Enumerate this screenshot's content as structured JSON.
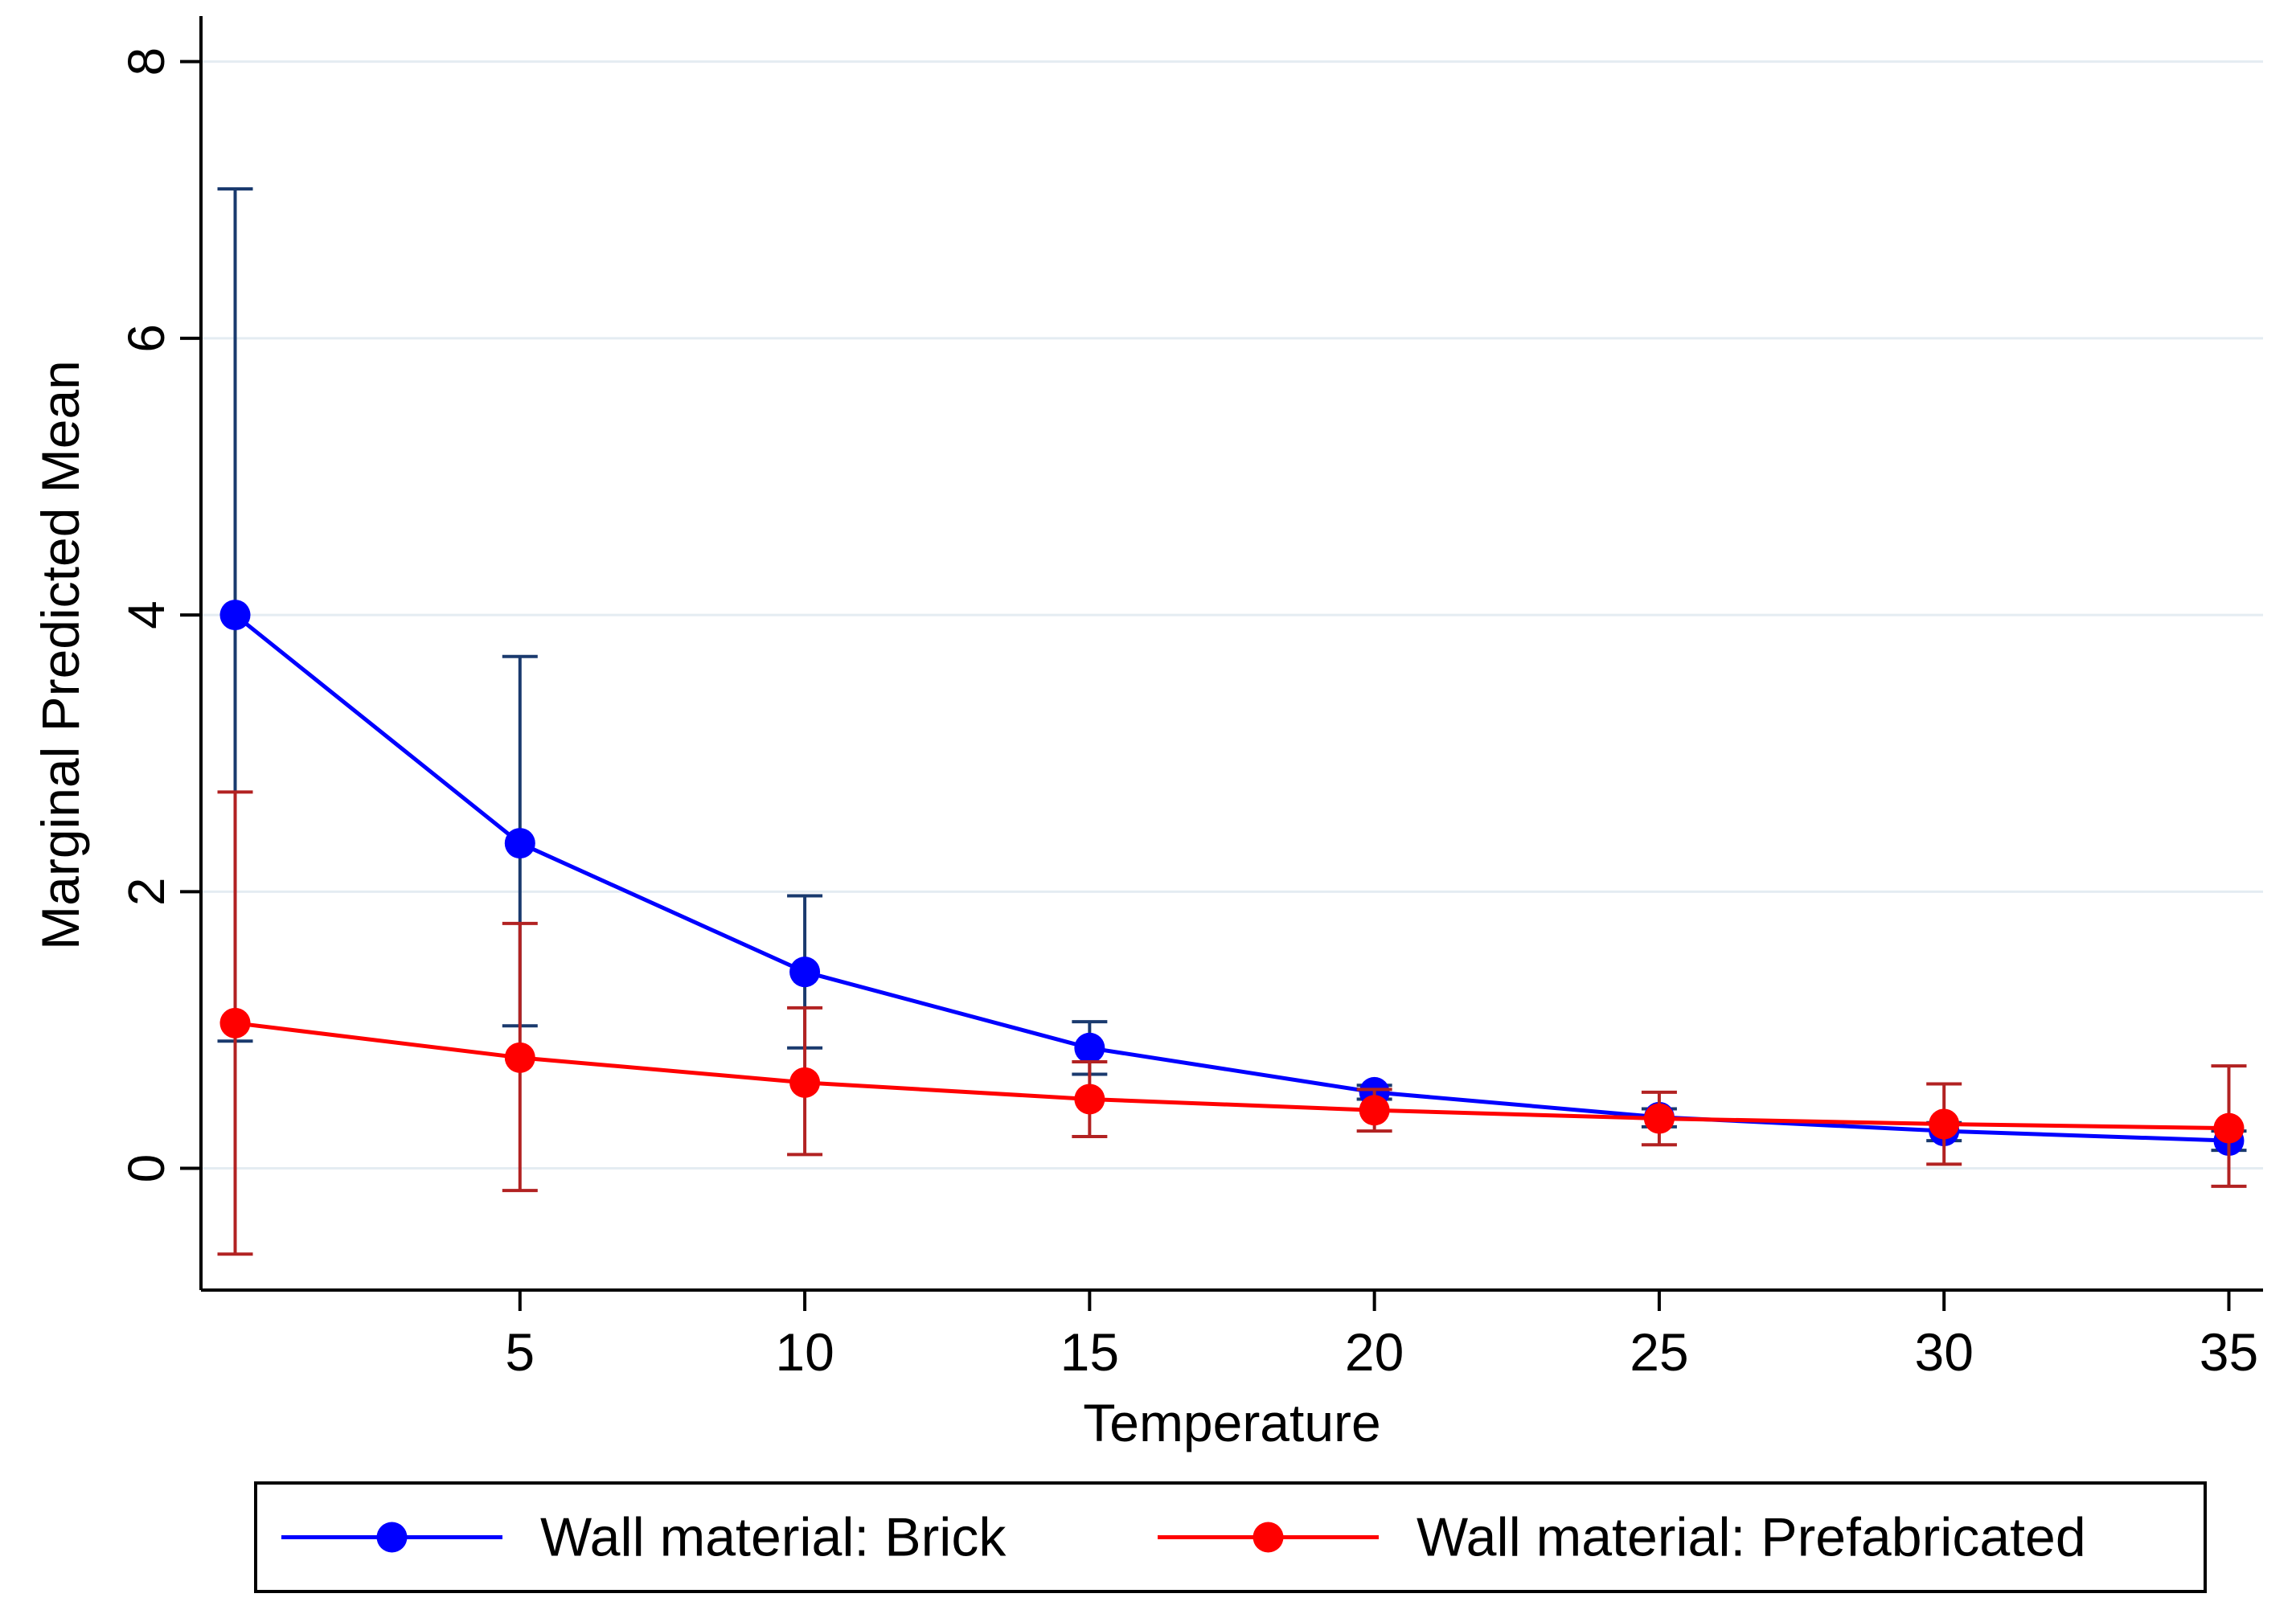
{
  "chart_data": {
    "type": "line",
    "title": "",
    "xlabel": "Temperature",
    "ylabel": "Marginal Predicted Mean",
    "x": [
      0,
      5,
      10,
      15,
      20,
      25,
      30,
      35
    ],
    "x_ticks": [
      5,
      10,
      15,
      20,
      25,
      30,
      35
    ],
    "y_ticks": [
      0,
      2,
      4,
      6,
      8
    ],
    "xlim": [
      -0.6,
      35.6
    ],
    "ylim": [
      -0.88,
      8.3
    ],
    "grid": true,
    "legend_position": "bottom",
    "series": [
      {
        "name": "Wall material: Brick",
        "color": "#0000ff",
        "error_color": "#1a3a6e",
        "values": [
          4.0,
          2.35,
          1.42,
          0.87,
          0.55,
          0.37,
          0.27,
          0.2
        ],
        "ci_low": [
          0.92,
          1.03,
          0.87,
          0.68,
          0.5,
          0.3,
          0.2,
          0.13
        ],
        "ci_high": [
          7.08,
          3.7,
          1.97,
          1.06,
          0.6,
          0.43,
          0.33,
          0.27
        ]
      },
      {
        "name": "Wall material: Prefabricated",
        "color": "#ff0000",
        "error_color": "#b22222",
        "values": [
          1.05,
          0.8,
          0.62,
          0.5,
          0.42,
          0.36,
          0.32,
          0.29
        ],
        "ci_low": [
          -0.62,
          -0.16,
          0.1,
          0.23,
          0.27,
          0.17,
          0.03,
          -0.13
        ],
        "ci_high": [
          2.72,
          1.77,
          1.16,
          0.77,
          0.57,
          0.55,
          0.61,
          0.74
        ]
      }
    ]
  }
}
